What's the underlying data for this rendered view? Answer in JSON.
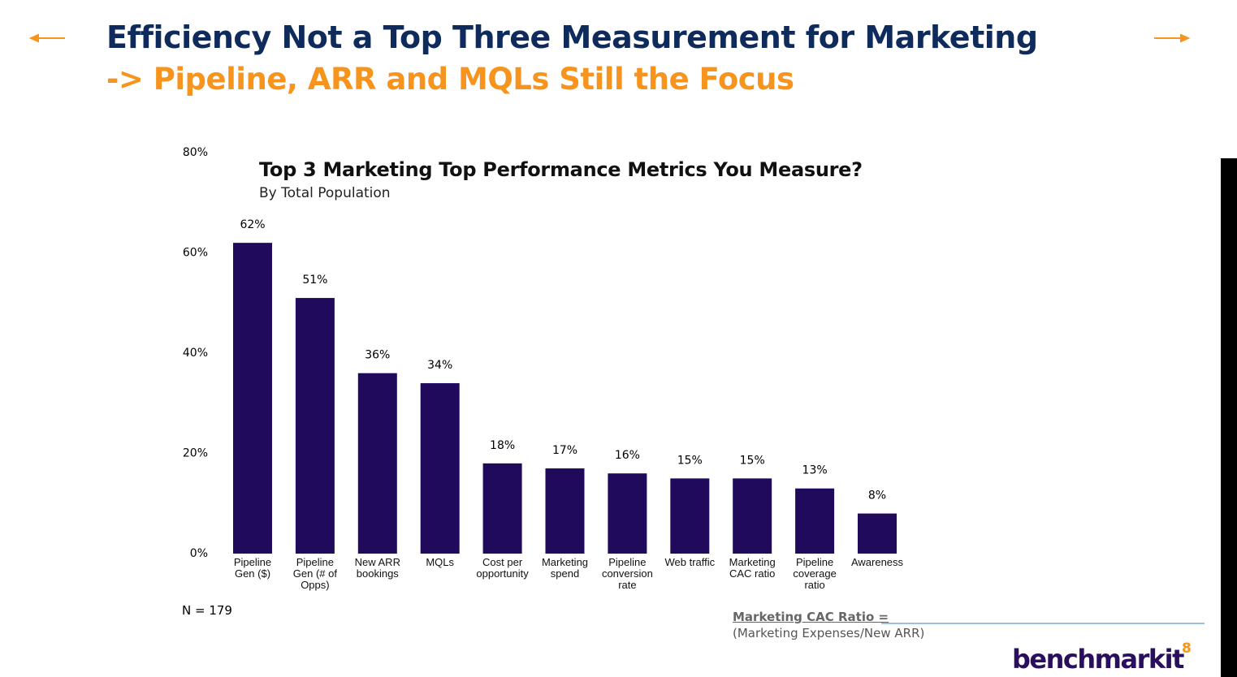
{
  "slide": {
    "title": "Efficiency Not a Top Three Measurement for Marketing",
    "subtitle": "-> Pipeline, ARR and MQLs Still the Focus",
    "page_number": "8",
    "logo": "benchmarkit"
  },
  "chart_data": {
    "type": "bar",
    "title": "Top 3 Marketing Top Performance Metrics You Measure?",
    "subtitle": "By Total Population",
    "categories": [
      "Pipeline\nGen ($)",
      "Pipeline\nGen (# of\nOpps)",
      "New ARR\nbookings",
      "MQLs",
      "Cost per\nopportunity",
      "Marketing\nspend",
      "Pipeline\nconversion\nrate",
      "Web traffic",
      "Marketing\nCAC ratio",
      "Pipeline\ncoverage\nratio",
      "Awareness"
    ],
    "values": [
      62,
      51,
      36,
      34,
      18,
      17,
      16,
      15,
      15,
      13,
      8
    ],
    "value_labels": [
      "62%",
      "51%",
      "36%",
      "34%",
      "18%",
      "17%",
      "16%",
      "15%",
      "15%",
      "13%",
      "8%"
    ],
    "color": "#1f0a5c",
    "ylim": [
      0,
      80
    ],
    "yticks": [
      {
        "value": 0,
        "label": "0%"
      },
      {
        "value": 20,
        "label": "20%"
      },
      {
        "value": 40,
        "label": "40%"
      },
      {
        "value": 60,
        "label": "60%"
      },
      {
        "value": 80,
        "label": "80%"
      }
    ],
    "grid": false,
    "note": "N = 179"
  },
  "footnote": {
    "heading": "Marketing CAC Ratio =",
    "text": "(Marketing Expenses/New ARR)"
  }
}
